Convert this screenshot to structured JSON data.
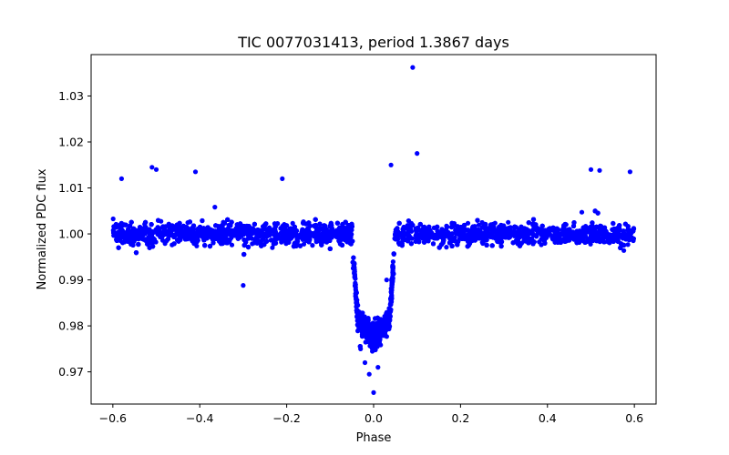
{
  "colors": {
    "points": "#0000ff",
    "axes": "#000000",
    "background": "#ffffff"
  },
  "chart_data": {
    "type": "scatter",
    "title": "TIC 0077031413, period 1.3867 days",
    "xlabel": "Phase",
    "ylabel": "Normalized PDC flux",
    "xlim": [
      -0.65,
      0.65
    ],
    "ylim": [
      0.963,
      1.039
    ],
    "xticks": [
      -0.6,
      -0.4,
      -0.2,
      0.0,
      0.2,
      0.4,
      0.6
    ],
    "xtick_labels": [
      "−0.6",
      "−0.4",
      "−0.2",
      "0.0",
      "0.2",
      "0.4",
      "0.6"
    ],
    "yticks": [
      0.97,
      0.98,
      0.99,
      1.0,
      1.01,
      1.02,
      1.03
    ],
    "ytick_labels": [
      "0.97",
      "0.98",
      "0.99",
      "1.00",
      "1.01",
      "1.02",
      "1.03"
    ],
    "grid": false,
    "legend": "none",
    "series_description_points": [
      {
        "x": -0.6,
        "y": 1.0
      },
      {
        "x": -0.58,
        "y": 1.012
      },
      {
        "x": -0.51,
        "y": 1.0145
      },
      {
        "x": -0.5,
        "y": 1.014
      },
      {
        "x": -0.41,
        "y": 1.0135
      },
      {
        "x": -0.3,
        "y": 0.9888
      },
      {
        "x": -0.21,
        "y": 1.012
      },
      {
        "x": -0.1,
        "y": 0.9955
      },
      {
        "x": -0.05,
        "y": 1.001
      },
      {
        "x": -0.04,
        "y": 0.985
      },
      {
        "x": -0.03,
        "y": 0.975
      },
      {
        "x": -0.02,
        "y": 0.972
      },
      {
        "x": -0.01,
        "y": 0.9695
      },
      {
        "x": 0.0,
        "y": 0.9655
      },
      {
        "x": 0.01,
        "y": 0.971
      },
      {
        "x": 0.02,
        "y": 0.978
      },
      {
        "x": 0.03,
        "y": 0.99
      },
      {
        "x": 0.04,
        "y": 1.015
      },
      {
        "x": 0.05,
        "y": 1.002
      },
      {
        "x": 0.09,
        "y": 1.0362
      },
      {
        "x": 0.1,
        "y": 1.0175
      },
      {
        "x": 0.2,
        "y": 1.0
      },
      {
        "x": 0.4,
        "y": 1.0
      },
      {
        "x": 0.5,
        "y": 1.014
      },
      {
        "x": 0.52,
        "y": 1.0138
      },
      {
        "x": 0.59,
        "y": 1.0135
      },
      {
        "x": 0.6,
        "y": 1.0
      }
    ]
  }
}
